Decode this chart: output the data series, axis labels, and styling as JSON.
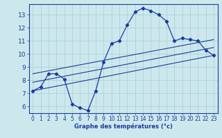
{
  "title": "",
  "xlabel": "Graphe des températures (°c)",
  "ylabel": "",
  "bg_color": "#cce8ec",
  "line_color": "#1a3a9e",
  "grid_color": "#aaccd4",
  "xlim": [
    -0.5,
    23.5
  ],
  "ylim": [
    5.5,
    13.8
  ],
  "xticks": [
    0,
    1,
    2,
    3,
    4,
    5,
    6,
    7,
    8,
    9,
    10,
    11,
    12,
    13,
    14,
    15,
    16,
    17,
    18,
    19,
    20,
    21,
    22,
    23
  ],
  "yticks": [
    6,
    7,
    8,
    9,
    10,
    11,
    12,
    13
  ],
  "temp_curve": {
    "x": [
      0,
      1,
      2,
      3,
      4,
      5,
      6,
      7,
      8,
      9,
      10,
      11,
      12,
      13,
      14,
      15,
      16,
      17,
      18,
      19,
      20,
      21,
      22,
      23
    ],
    "y": [
      7.2,
      7.5,
      8.5,
      8.5,
      8.1,
      6.2,
      5.9,
      5.7,
      7.2,
      9.4,
      10.8,
      11.0,
      12.2,
      13.2,
      13.5,
      13.3,
      13.0,
      12.5,
      11.0,
      11.2,
      11.1,
      11.0,
      10.3,
      9.9
    ]
  },
  "min_line": {
    "x": [
      0,
      23
    ],
    "y": [
      7.2,
      9.9
    ]
  },
  "max_line": {
    "x": [
      0,
      23
    ],
    "y": [
      8.5,
      11.1
    ]
  },
  "avg_line": {
    "x": [
      0,
      23
    ],
    "y": [
      7.85,
      10.5
    ]
  }
}
